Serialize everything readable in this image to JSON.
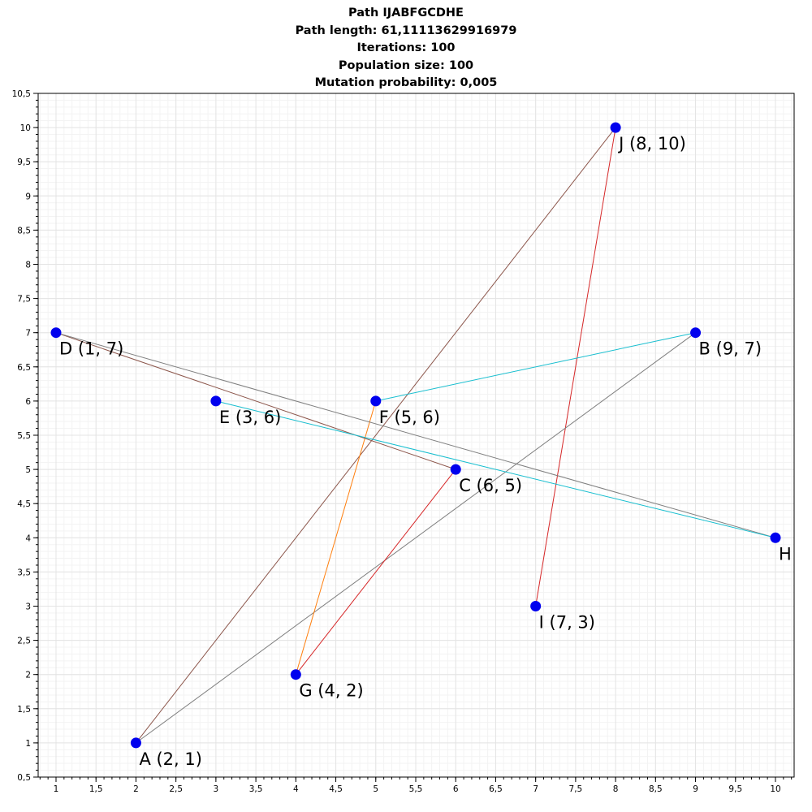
{
  "titles": {
    "line1": "Path IJABFGCDHE",
    "line2": "Path length: 61,11113629916979",
    "line3": "Iterations: 100",
    "line4": "Population size: 100",
    "line5": "Mutation probability: 0,005"
  },
  "chart_data": {
    "type": "scatter",
    "title": "Path IJABFGCDHE",
    "xlim": [
      1,
      10
    ],
    "ylim": [
      0.5,
      10.5
    ],
    "x_ticks": [
      "1",
      "1,5",
      "2",
      "2,5",
      "3",
      "3,5",
      "4",
      "4,5",
      "5",
      "5,5",
      "6",
      "6,5",
      "7",
      "7,5",
      "8",
      "8,5",
      "9",
      "9,5",
      "10"
    ],
    "y_ticks": [
      "0,5",
      "1",
      "1,5",
      "2",
      "2,5",
      "3",
      "3,5",
      "4",
      "4,5",
      "5",
      "5,5",
      "6",
      "6,5",
      "7",
      "7,5",
      "8",
      "8,5",
      "9",
      "9,5",
      "10",
      "10,5"
    ],
    "grid": true,
    "point_color": "#0000ee",
    "points": [
      {
        "id": "A",
        "x": 2,
        "y": 1,
        "label": "A (2, 1)"
      },
      {
        "id": "B",
        "x": 9,
        "y": 7,
        "label": "B (9, 7)"
      },
      {
        "id": "C",
        "x": 6,
        "y": 5,
        "label": "C (6, 5)"
      },
      {
        "id": "D",
        "x": 1,
        "y": 7,
        "label": "D (1, 7)"
      },
      {
        "id": "E",
        "x": 3,
        "y": 6,
        "label": "E (3, 6)"
      },
      {
        "id": "F",
        "x": 5,
        "y": 6,
        "label": "F (5, 6)"
      },
      {
        "id": "G",
        "x": 4,
        "y": 2,
        "label": "G (4, 2)"
      },
      {
        "id": "H",
        "x": 10,
        "y": 4,
        "label": "H"
      },
      {
        "id": "I",
        "x": 7,
        "y": 3,
        "label": "I (7, 3)"
      },
      {
        "id": "J",
        "x": 8,
        "y": 10,
        "label": "J (8, 10)"
      }
    ],
    "segments": [
      {
        "from": "I",
        "to": "J",
        "color": "#d62728"
      },
      {
        "from": "J",
        "to": "A",
        "color": "#8c564b"
      },
      {
        "from": "A",
        "to": "B",
        "color": "#7f7f7f"
      },
      {
        "from": "B",
        "to": "F",
        "color": "#17becf"
      },
      {
        "from": "F",
        "to": "G",
        "color": "#ff7f0e"
      },
      {
        "from": "G",
        "to": "C",
        "color": "#d62728"
      },
      {
        "from": "C",
        "to": "D",
        "color": "#8c564b"
      },
      {
        "from": "D",
        "to": "H",
        "color": "#7f7f7f"
      },
      {
        "from": "H",
        "to": "E",
        "color": "#17becf"
      }
    ]
  }
}
